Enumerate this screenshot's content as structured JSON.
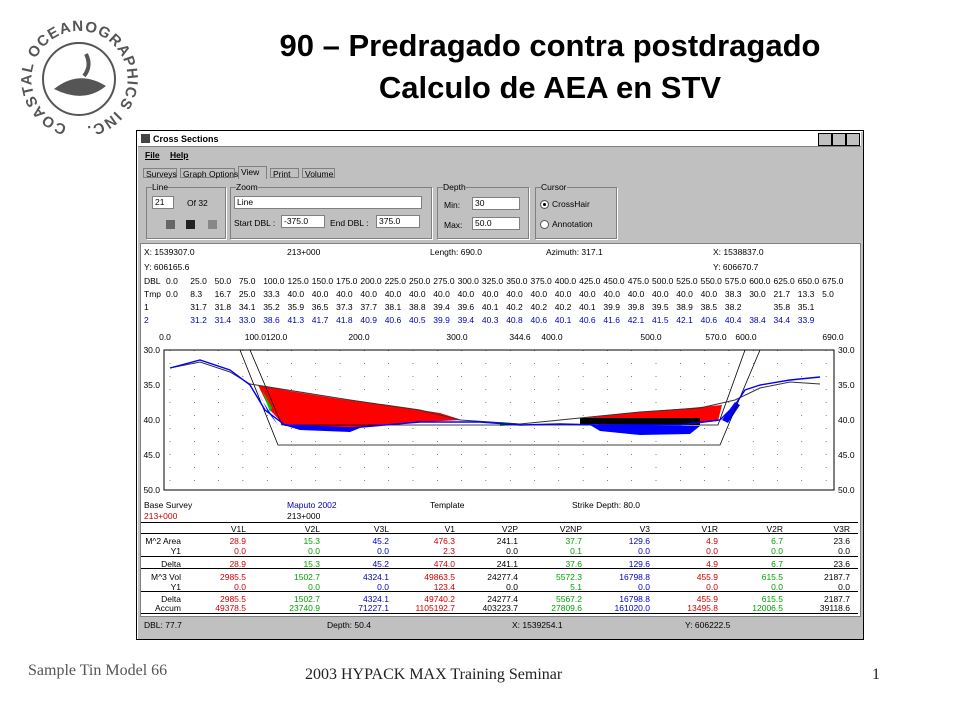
{
  "header": {
    "title_line1": "90 – Predragado contra postdragado",
    "title_line2": "Calculo de AEA en STV"
  },
  "logo": {
    "text": "COASTAL OCEANOGRAPHICS INC."
  },
  "window": {
    "title": "Cross Sections",
    "menu": [
      "File",
      "Help"
    ],
    "tabs": [
      "Surveys",
      "Graph Options",
      "View",
      "Print",
      "Volume"
    ],
    "line_group": {
      "label": "Line",
      "value": "21",
      "of": "Of 32"
    },
    "zoom_group": {
      "label": "Zoom",
      "select": "Line",
      "start_label": "Start DBL :",
      "start_value": "-375.0",
      "end_label": "End DBL :",
      "end_value": "375.0"
    },
    "depth_group": {
      "label": "Depth",
      "min_label": "Min:",
      "min_value": "30",
      "max_label": "Max:",
      "max_value": "50.0"
    },
    "cursor_group": {
      "label": "Cursor",
      "options": [
        "CrossHair",
        "Annotation"
      ]
    },
    "info": {
      "x_start": "X: 1539307.0",
      "station": "213+000",
      "length": "Length: 690.0",
      "azimuth": "Azimuth: 317.1",
      "x_end": "X: 1538837.0",
      "y_start": "Y: 606165.6",
      "y_end": "Y: 606670.7"
    },
    "profile_table": {
      "rows": [
        {
          "label": "DBL",
          "cells": [
            "0.0",
            "25.0",
            "50.0",
            "75.0",
            "100.0",
            "125.0",
            "150.0",
            "175.0",
            "200.0",
            "225.0",
            "250.0",
            "275.0",
            "300.0",
            "325.0",
            "350.0",
            "375.0",
            "400.0",
            "425.0",
            "450.0",
            "475.0",
            "500.0",
            "525.0",
            "550.0",
            "575.0",
            "600.0",
            "625.0",
            "650.0",
            "675.0"
          ]
        },
        {
          "label": "Tmp",
          "cells": [
            "0.0",
            "8.3",
            "16.7",
            "25.0",
            "33.3",
            "40.0",
            "40.0",
            "40.0",
            "40.0",
            "40.0",
            "40.0",
            "40.0",
            "40.0",
            "40.0",
            "40.0",
            "40.0",
            "40.0",
            "40.0",
            "40.0",
            "40.0",
            "40.0",
            "40.0",
            "40.0",
            "38.3",
            "30.0",
            "21.7",
            "13.3",
            "5.0"
          ]
        },
        {
          "label": "1",
          "cells": [
            null,
            "31.7",
            "31.8",
            "34.1",
            "35.2",
            "35.9",
            "36.5",
            "37.3",
            "37.7",
            "38.1",
            "38.8",
            "39.4",
            "39.6",
            "40.1",
            "40.2",
            "40.2",
            "40.2",
            "40.1",
            "39.9",
            "39.8",
            "39.5",
            "38.9",
            "38.5",
            "38.2",
            null,
            "35.8",
            "35.1",
            null
          ]
        },
        {
          "label": "2",
          "cells": [
            null,
            "31.2",
            "31.4",
            "33.0",
            "38.6",
            "41.3",
            "41.7",
            "41.8",
            "40.9",
            "40.6",
            "40.5",
            "39.9",
            "39.4",
            "40.3",
            "40.8",
            "40.6",
            "40.1",
            "40.6",
            "41.6",
            "42.1",
            "41.5",
            "42.1",
            "40.6",
            "40.4",
            "38.4",
            "34.4",
            "33.9",
            null
          ]
        }
      ]
    },
    "distance_marks": [
      "0.0",
      "100.0120.0",
      "200.0",
      "300.0",
      "344.6",
      "400.0",
      "500.0",
      "570.0",
      "600.0",
      "690.0"
    ],
    "depth_axis": [
      "30.0",
      "35.0",
      "40.0",
      "45.0",
      "50.0"
    ],
    "survey_info": {
      "base_label": "Base Survey",
      "base_value": "Maputo 2002",
      "template": "Template",
      "strike": "Strike Depth: 80.0",
      "station_left": "213+000",
      "station_mid": "213+000"
    },
    "volume_table": {
      "columns": [
        "V1L",
        "V2L",
        "V3L",
        "V1",
        "V2P",
        "V2NP",
        "V3",
        "V1R",
        "V2R",
        "V3R"
      ],
      "column_colors": [
        "#d00000",
        "#00a000",
        "#0000c0",
        "#d00000",
        "#000000",
        "#00a000",
        "#0000c0",
        "#d00000",
        "#00a000",
        "#000000"
      ],
      "rows": [
        {
          "label": "M^2 Area",
          "cells": [
            "28.9",
            "15.3",
            "45.2",
            "476.3",
            "241.1",
            "37.7",
            "129.6",
            "4.9",
            "6.7",
            "23.6"
          ]
        },
        {
          "label": "Y1",
          "cells": [
            "0.0",
            "0.0",
            "0.0",
            "2.3",
            "0.0",
            "0.1",
            "0.0",
            "0.0",
            "0.0",
            "0.0"
          ]
        },
        {
          "label": "Delta",
          "cells": [
            "28.9",
            "15.3",
            "45.2",
            "474.0",
            "241.1",
            "37.6",
            "129.6",
            "4.9",
            "6.7",
            "23.6"
          ]
        },
        {
          "label": "M^3 Vol",
          "cells": [
            "2985.5",
            "1502.7",
            "4324.1",
            "49863.5",
            "24277.4",
            "5572.3",
            "16798.8",
            "455.9",
            "615.5",
            "2187.7"
          ]
        },
        {
          "label": "Y1",
          "cells": [
            "0.0",
            "0.0",
            "0.0",
            "123.4",
            "0.0",
            "5.1",
            "0.0",
            "0.0",
            "0.0",
            "0.0"
          ]
        },
        {
          "label": "Delta",
          "cells": [
            "2985.5",
            "1502.7",
            "4324.1",
            "49740.2",
            "24277.4",
            "5567.2",
            "16798.8",
            "455.9",
            "615.5",
            "2187.7"
          ]
        },
        {
          "label": "Accum",
          "cells": [
            "49378.5",
            "23740.9",
            "71227.1",
            "1105192.7",
            "403223.7",
            "27809.6",
            "161020.0",
            "13495.8",
            "12006.5",
            "39118.6"
          ]
        }
      ]
    },
    "status": {
      "dbl": "DBL: 77.7",
      "depth": "Depth: 50.4",
      "x": "X: 1539254.1",
      "y": "Y: 606222.5"
    }
  },
  "footer": {
    "left": "Sample Tin Model 66",
    "center": "2003 HYPACK MAX Training Seminar",
    "page": "1"
  }
}
